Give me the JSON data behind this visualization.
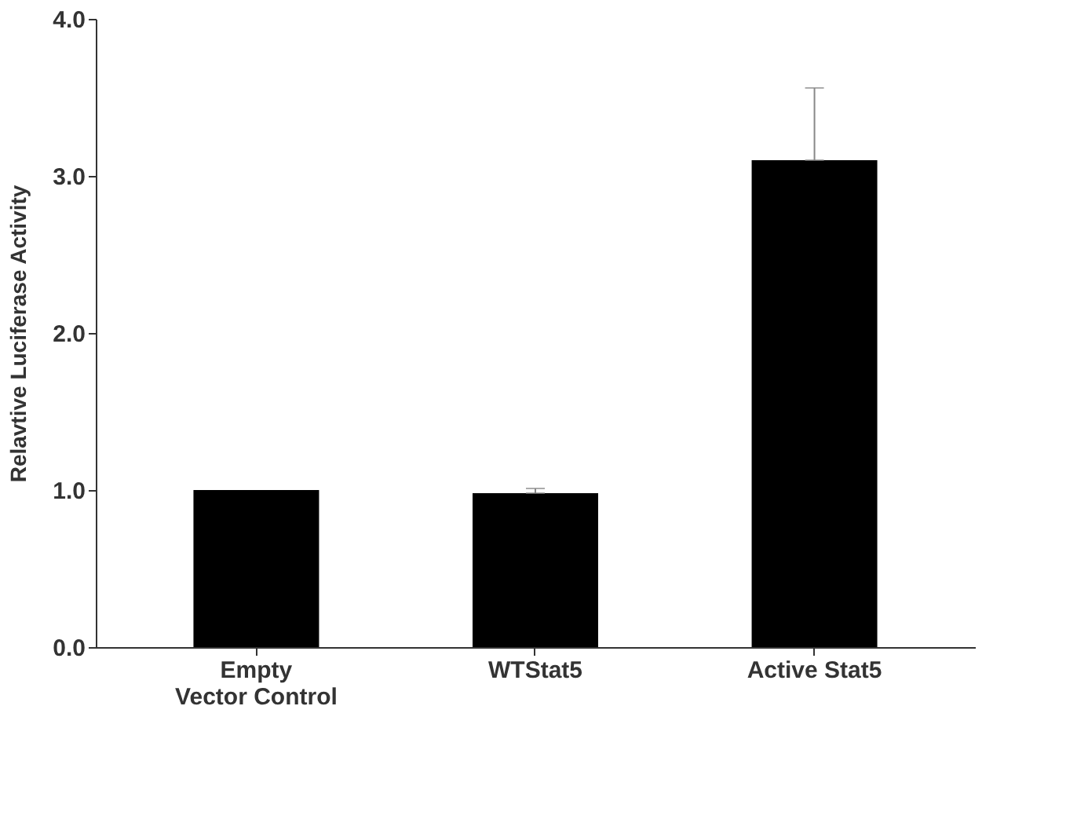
{
  "chart_data": {
    "type": "bar",
    "ylabel": "Relavtive Luciferase Activity",
    "categories": [
      "Empty\nVector Control",
      "WTStat5",
      "Active Stat5"
    ],
    "values": [
      1.0,
      0.98,
      3.1
    ],
    "errors": [
      null,
      [
        0.98,
        1.01
      ],
      [
        3.1,
        3.56
      ]
    ],
    "color": "#000000",
    "ylim": [
      0,
      4
    ],
    "yticks": [
      {
        "value": 0,
        "label": "0.0"
      },
      {
        "value": 1,
        "label": "1.0"
      },
      {
        "value": 2,
        "label": "2.0"
      },
      {
        "value": 3,
        "label": "3.0"
      },
      {
        "value": 4,
        "label": "4.0"
      }
    ],
    "grid": false
  }
}
